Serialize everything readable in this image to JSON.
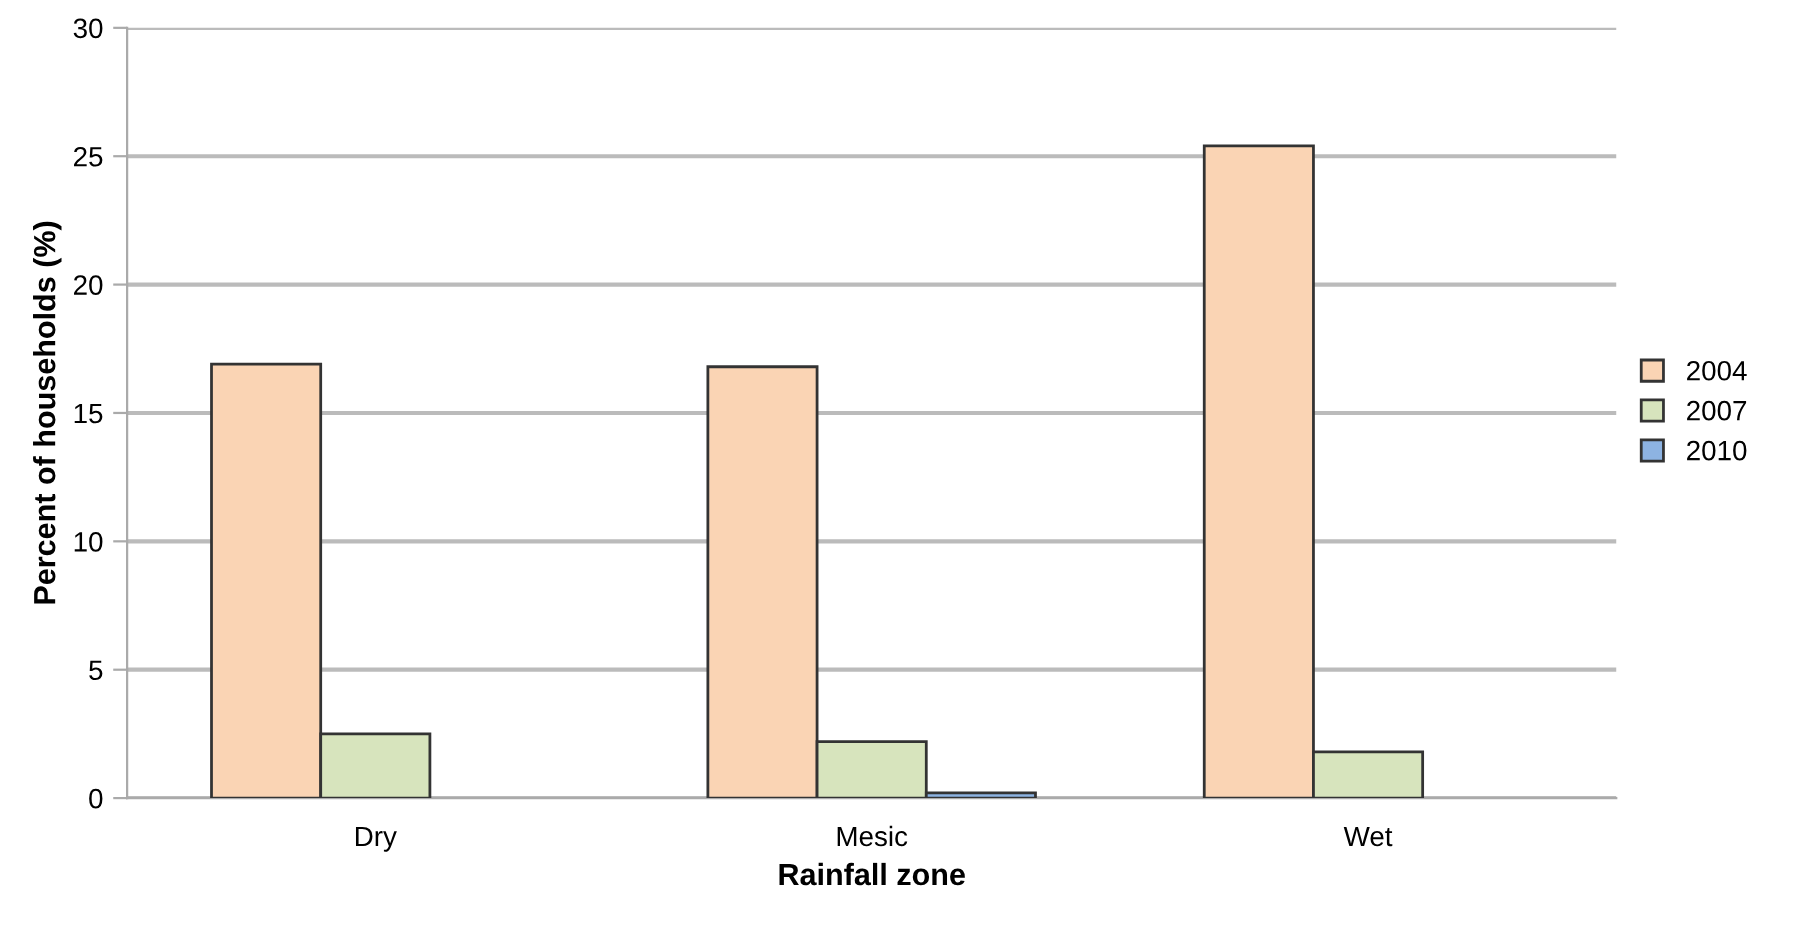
{
  "chart_data": {
    "type": "bar",
    "xlabel": "Rainfall zone",
    "ylabel": "Percent of households (%)",
    "categories": [
      "Dry",
      "Mesic",
      "Wet"
    ],
    "series": [
      {
        "name": "2004",
        "color": "#fad4b4",
        "values": [
          16.9,
          16.8,
          25.4
        ]
      },
      {
        "name": "2007",
        "color": "#d7e4bd",
        "values": [
          2.5,
          2.2,
          1.8
        ]
      },
      {
        "name": "2010",
        "color": "#8db3e2",
        "values": [
          null,
          0.2,
          null
        ]
      }
    ],
    "ylim": [
      0,
      30
    ],
    "yticks": [
      0,
      5,
      10,
      15,
      20,
      25,
      30
    ],
    "grid": "y",
    "legend": "right"
  }
}
